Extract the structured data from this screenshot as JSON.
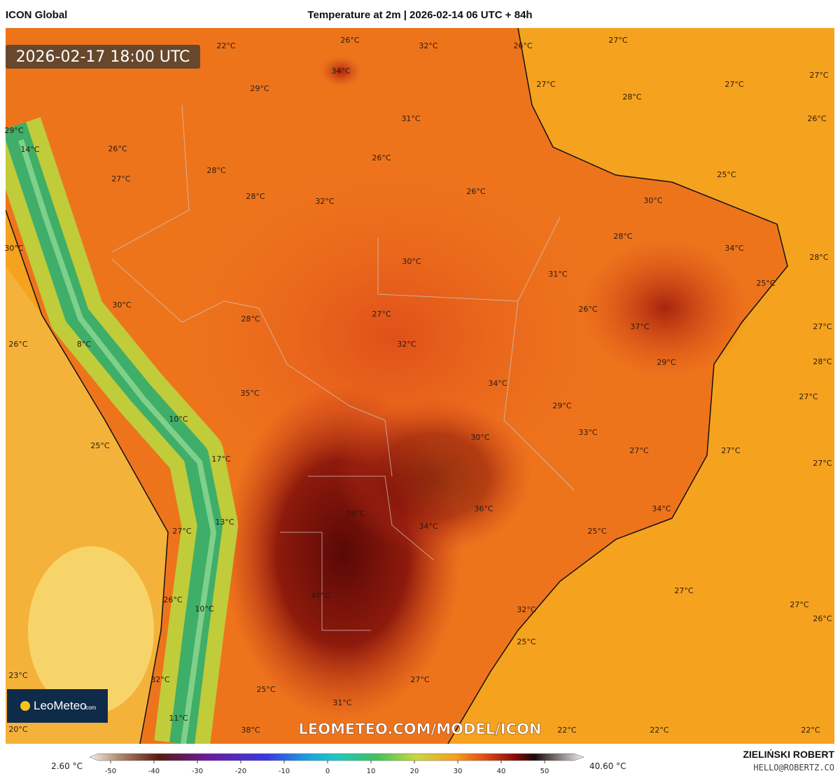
{
  "header": {
    "left": "ICON Global",
    "center": "Temperature at 2m | 2026-02-14 06 UTC + 84h"
  },
  "timestamp": "2026-02-17 18:00 UTC",
  "watermark": "LEOMETEO.COM/MODEL/ICON",
  "logo": {
    "name": "LeoMeteo",
    "suffix": ".com"
  },
  "temperature_labels": [
    "22°C",
    "26°C",
    "32°C",
    "26°C",
    "27°C",
    "27°C",
    "34°C",
    "27°C",
    "27°C",
    "29°C",
    "28°C",
    "26°C",
    "31°C",
    "29°C",
    "14°C",
    "26°C",
    "26°C",
    "28°C",
    "27°C",
    "25°C",
    "26°C",
    "28°C",
    "32°C",
    "30°C",
    "28°C",
    "34°C",
    "30°C",
    "28°C",
    "30°C",
    "31°C",
    "25°C",
    "30°C",
    "26°C",
    "27°C",
    "28°C",
    "37°C",
    "27°C",
    "26°C",
    "8°C",
    "32°C",
    "29°C",
    "28°C",
    "34°C",
    "35°C",
    "27°C",
    "29°C",
    "10°C",
    "33°C",
    "30°C",
    "25°C",
    "27°C",
    "27°C",
    "17°C",
    "27°C",
    "36°C",
    "34°C",
    "39°C",
    "13°C",
    "34°C",
    "27°C",
    "25°C",
    "27°C",
    "40°C",
    "26°C",
    "27°C",
    "10°C",
    "32°C",
    "26°C",
    "25°C",
    "23°C",
    "27°C",
    "32°C",
    "25°C",
    "31°C",
    "11°C",
    "20°C",
    "38°C",
    "22°C",
    "22°C",
    "22°C"
  ],
  "colorbar": {
    "min_label": "2.60 °C",
    "max_label": "40.60 °C",
    "ticks": [
      -50,
      -40,
      -30,
      -20,
      -10,
      0,
      10,
      20,
      30,
      40,
      50
    ]
  },
  "credits": {
    "author": "ZIELIŃSKI ROBERT",
    "contact": "HELLO@ROBERTZ.CO"
  }
}
